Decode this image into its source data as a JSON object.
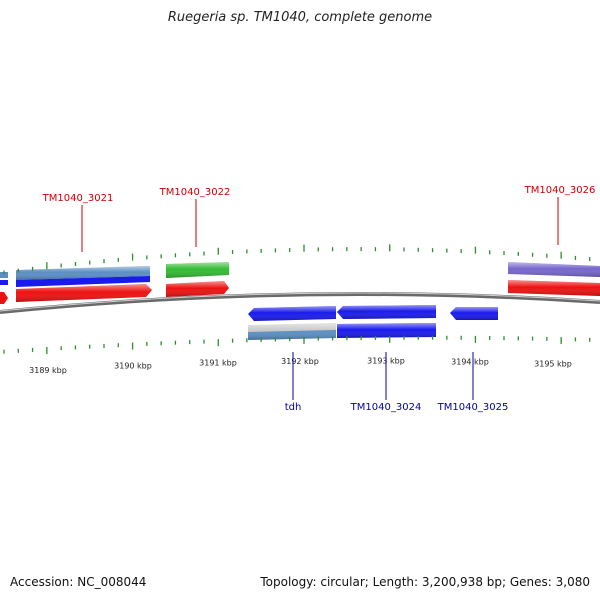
{
  "title": "Ruegeria sp. TM1040, complete genome",
  "footer": {
    "accession": "Accession: NC_008044",
    "summary": "Topology: circular; Length: 3,200,938 bp; Genes: 3,080"
  },
  "colors": {
    "backbone": "#888888",
    "tick": "#2e8b2e",
    "forward_label": "#cc0000",
    "reverse_label": "#0000aa",
    "gene_red": "#ee1111",
    "cds_blue": "#1a1aee",
    "gene_green": "#33bb33",
    "gene_purple": "#7766cc",
    "gene_lightblue": "#5b8fc4",
    "gene_grey": "#c8c8c8"
  },
  "axis": {
    "tick_labels": [
      "3189 kbp",
      "3190 kbp",
      "3191 kbp",
      "3192 kbp",
      "3193 kbp",
      "3194 kbp",
      "3195 kbp"
    ]
  },
  "genes": {
    "forward_labels": [
      "TM1040_3021",
      "TM1040_3022",
      "TM1040_3026"
    ],
    "reverse_labels": [
      "tdh",
      "TM1040_3024",
      "TM1040_3025"
    ]
  }
}
